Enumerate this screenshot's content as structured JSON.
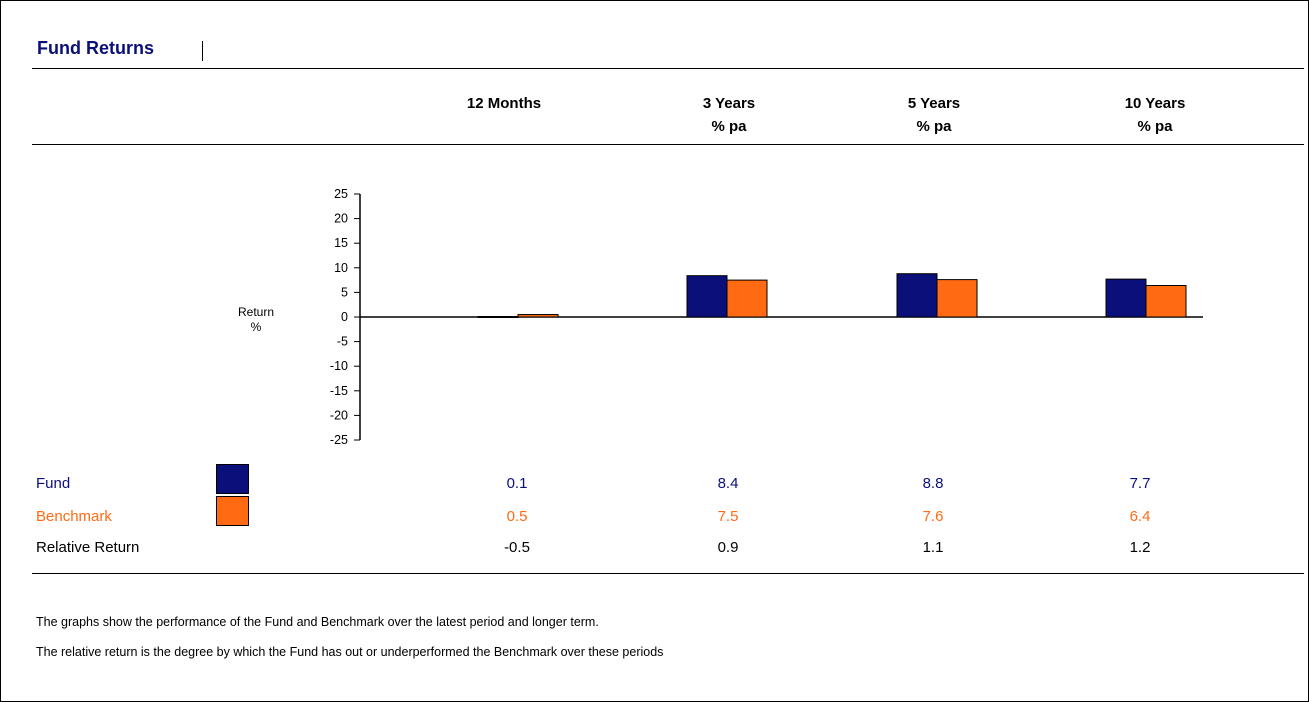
{
  "title": "Fund Returns",
  "columns": [
    {
      "line1": "12 Months",
      "line2": ""
    },
    {
      "line1": "3 Years",
      "line2": "% pa"
    },
    {
      "line1": "5 Years",
      "line2": "% pa"
    },
    {
      "line1": "10 Years",
      "line2": "% pa"
    }
  ],
  "rows": {
    "fund": {
      "label": "Fund",
      "values": [
        "0.1",
        "8.4",
        "8.8",
        "7.7"
      ]
    },
    "benchmark": {
      "label": "Benchmark",
      "values": [
        "0.5",
        "7.5",
        "7.6",
        "6.4"
      ]
    },
    "relative": {
      "label": "Relative Return",
      "values": [
        "-0.5",
        "0.9",
        "1.1",
        "1.2"
      ]
    }
  },
  "notes": [
    "The graphs show the performance of the Fund and Benchmark over the latest period and longer term.",
    "The relative return is the degree by which the Fund has out or underperformed the Benchmark over these periods"
  ],
  "colors": {
    "fund": "#0b0f7a",
    "benchmark": "#ff6a13"
  },
  "chart_data": {
    "type": "bar",
    "categories": [
      "12 Months",
      "3 Years % pa",
      "5 Years % pa",
      "10 Years % pa"
    ],
    "series": [
      {
        "name": "Fund",
        "values": [
          0.1,
          8.4,
          8.8,
          7.7
        ]
      },
      {
        "name": "Benchmark",
        "values": [
          0.5,
          7.5,
          7.6,
          6.4
        ]
      }
    ],
    "ylabel_line1": "Return",
    "ylabel_line2": "%",
    "ylim": [
      -25,
      25
    ],
    "yticks": [
      25,
      20,
      15,
      10,
      5,
      0,
      -5,
      -10,
      -15,
      -20,
      -25
    ],
    "grid": false
  }
}
